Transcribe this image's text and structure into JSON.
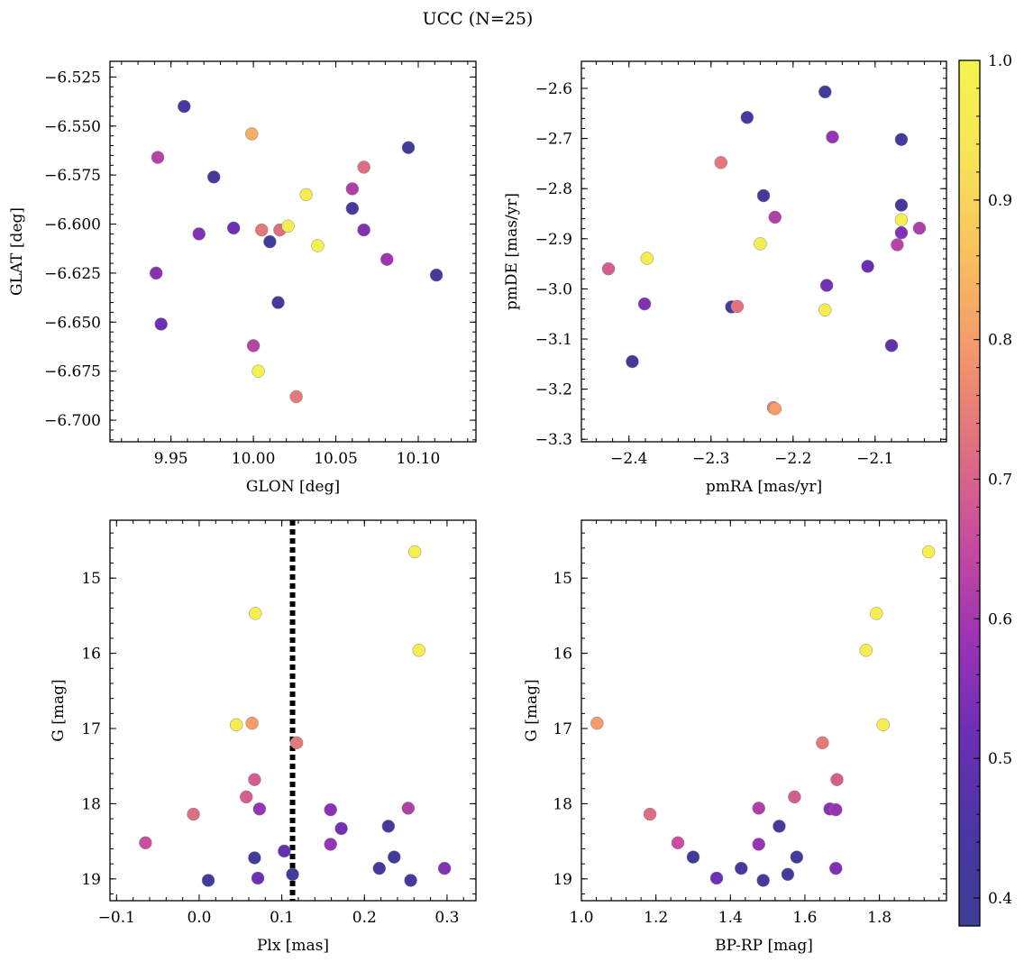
{
  "title": "UCC (N=25)",
  "chart_data": [
    {
      "type": "scatter",
      "xlabel": "GLON [deg]",
      "ylabel": "GLAT [deg]",
      "xlim": [
        9.913,
        10.135
      ],
      "ylim": [
        -6.711,
        -6.517
      ],
      "xticks": [
        9.95,
        10.0,
        10.05,
        10.1
      ],
      "xtick_labels": [
        "9.95",
        "10.00",
        "10.05",
        "10.10"
      ],
      "yticks": [
        -6.525,
        -6.55,
        -6.575,
        -6.6,
        -6.625,
        -6.65,
        -6.675,
        -6.7
      ],
      "ytick_labels": [
        "−6.525",
        "−6.550",
        "−6.575",
        "−6.600",
        "−6.625",
        "−6.650",
        "−6.675",
        "−6.700"
      ],
      "color_by": "membership probability",
      "points": [
        {
          "x": 9.958,
          "y": -6.54,
          "c": 0.44
        },
        {
          "x": 9.942,
          "y": -6.566,
          "c": 0.63
        },
        {
          "x": 9.976,
          "y": -6.576,
          "c": 0.42
        },
        {
          "x": 9.999,
          "y": -6.554,
          "c": 0.83
        },
        {
          "x": 9.941,
          "y": -6.625,
          "c": 0.56
        },
        {
          "x": 9.944,
          "y": -6.651,
          "c": 0.52
        },
        {
          "x": 9.967,
          "y": -6.605,
          "c": 0.55
        },
        {
          "x": 9.988,
          "y": -6.602,
          "c": 0.52
        },
        {
          "x": 10.005,
          "y": -6.603,
          "c": 0.74
        },
        {
          "x": 10.01,
          "y": -6.609,
          "c": 0.4
        },
        {
          "x": 10.016,
          "y": -6.603,
          "c": 0.72
        },
        {
          "x": 10.021,
          "y": -6.601,
          "c": 0.97
        },
        {
          "x": 10.032,
          "y": -6.585,
          "c": 0.96
        },
        {
          "x": 10.039,
          "y": -6.611,
          "c": 0.98
        },
        {
          "x": 10.015,
          "y": -6.64,
          "c": 0.43
        },
        {
          "x": 10.0,
          "y": -6.662,
          "c": 0.63
        },
        {
          "x": 10.003,
          "y": -6.675,
          "c": 0.99
        },
        {
          "x": 10.026,
          "y": -6.688,
          "c": 0.74
        },
        {
          "x": 10.06,
          "y": -6.582,
          "c": 0.62
        },
        {
          "x": 10.067,
          "y": -6.571,
          "c": 0.72
        },
        {
          "x": 10.06,
          "y": -6.592,
          "c": 0.44
        },
        {
          "x": 10.067,
          "y": -6.603,
          "c": 0.55
        },
        {
          "x": 10.081,
          "y": -6.618,
          "c": 0.59
        },
        {
          "x": 10.094,
          "y": -6.561,
          "c": 0.41
        },
        {
          "x": 10.111,
          "y": -6.626,
          "c": 0.42
        }
      ]
    },
    {
      "type": "scatter",
      "xlabel": "pmRA [mas/yr]",
      "ylabel": "pmDE [mas/yr]",
      "xlim": [
        -2.458,
        -2.013
      ],
      "ylim": [
        -3.305,
        -2.546
      ],
      "xticks": [
        -2.4,
        -2.3,
        -2.2,
        -2.1
      ],
      "xtick_labels": [
        "−2.4",
        "−2.3",
        "−2.2",
        "−2.1"
      ],
      "yticks": [
        -2.6,
        -2.7,
        -2.8,
        -2.9,
        -3.0,
        -3.1,
        -3.2,
        -3.3
      ],
      "ytick_labels": [
        "−2.6",
        "−2.7",
        "−2.8",
        "−2.9",
        "−3.0",
        "−3.1",
        "−3.2",
        "−3.3"
      ],
      "color_by": "membership probability",
      "points": [
        {
          "x": -2.161,
          "y": -2.607,
          "c": 0.41
        },
        {
          "x": -2.256,
          "y": -2.658,
          "c": 0.44
        },
        {
          "x": -2.152,
          "y": -2.697,
          "c": 0.58
        },
        {
          "x": -2.068,
          "y": -2.702,
          "c": 0.41
        },
        {
          "x": -2.288,
          "y": -2.748,
          "c": 0.74
        },
        {
          "x": -2.236,
          "y": -2.814,
          "c": 0.42
        },
        {
          "x": -2.068,
          "y": -2.833,
          "c": 0.42
        },
        {
          "x": -2.222,
          "y": -2.857,
          "c": 0.62
        },
        {
          "x": -2.068,
          "y": -2.862,
          "c": 0.98
        },
        {
          "x": -2.068,
          "y": -2.888,
          "c": 0.55
        },
        {
          "x": -2.046,
          "y": -2.879,
          "c": 0.62
        },
        {
          "x": -2.073,
          "y": -2.912,
          "c": 0.63
        },
        {
          "x": -2.24,
          "y": -2.91,
          "c": 0.97
        },
        {
          "x": -2.378,
          "y": -2.939,
          "c": 0.97
        },
        {
          "x": -2.425,
          "y": -2.96,
          "c": 0.69
        },
        {
          "x": -2.109,
          "y": -2.955,
          "c": 0.51
        },
        {
          "x": -2.159,
          "y": -2.993,
          "c": 0.53
        },
        {
          "x": -2.381,
          "y": -3.03,
          "c": 0.55
        },
        {
          "x": -2.275,
          "y": -3.036,
          "c": 0.41
        },
        {
          "x": -2.268,
          "y": -3.035,
          "c": 0.73
        },
        {
          "x": -2.161,
          "y": -3.042,
          "c": 0.97
        },
        {
          "x": -2.08,
          "y": -3.113,
          "c": 0.5
        },
        {
          "x": -2.396,
          "y": -3.145,
          "c": 0.41
        },
        {
          "x": -2.224,
          "y": -3.237,
          "c": 0.74
        },
        {
          "x": -2.222,
          "y": -3.239,
          "c": 0.8
        }
      ]
    },
    {
      "type": "scatter",
      "xlabel": "Plx [mas]",
      "ylabel": "G [mag]",
      "xlim": [
        -0.108,
        0.335
      ],
      "ylim": [
        19.29,
        14.23
      ],
      "xticks": [
        -0.1,
        0.0,
        0.1,
        0.2,
        0.3
      ],
      "xtick_labels": [
        "−0.1",
        "0.0",
        "0.1",
        "0.2",
        "0.3"
      ],
      "yticks": [
        15,
        16,
        17,
        18,
        19
      ],
      "ytick_labels": [
        "15",
        "16",
        "17",
        "18",
        "19"
      ],
      "vline": 0.113,
      "color_by": "membership probability",
      "points": [
        {
          "x": 0.261,
          "y": 14.65,
          "c": 0.98
        },
        {
          "x": 0.068,
          "y": 15.47,
          "c": 0.98
        },
        {
          "x": 0.266,
          "y": 15.96,
          "c": 0.97
        },
        {
          "x": 0.045,
          "y": 16.95,
          "c": 0.97
        },
        {
          "x": 0.064,
          "y": 16.93,
          "c": 0.8
        },
        {
          "x": 0.118,
          "y": 17.19,
          "c": 0.74
        },
        {
          "x": 0.067,
          "y": 17.68,
          "c": 0.69
        },
        {
          "x": 0.057,
          "y": 17.91,
          "c": 0.69
        },
        {
          "x": 0.073,
          "y": 18.07,
          "c": 0.58
        },
        {
          "x": -0.007,
          "y": 18.14,
          "c": 0.72
        },
        {
          "x": 0.159,
          "y": 18.08,
          "c": 0.56
        },
        {
          "x": 0.253,
          "y": 18.06,
          "c": 0.62
        },
        {
          "x": 0.172,
          "y": 18.33,
          "c": 0.53
        },
        {
          "x": 0.229,
          "y": 18.3,
          "c": 0.42
        },
        {
          "x": -0.065,
          "y": 18.52,
          "c": 0.66
        },
        {
          "x": 0.159,
          "y": 18.54,
          "c": 0.58
        },
        {
          "x": 0.103,
          "y": 18.63,
          "c": 0.51
        },
        {
          "x": 0.067,
          "y": 18.72,
          "c": 0.41
        },
        {
          "x": 0.236,
          "y": 18.71,
          "c": 0.41
        },
        {
          "x": 0.218,
          "y": 18.86,
          "c": 0.42
        },
        {
          "x": 0.297,
          "y": 18.86,
          "c": 0.55
        },
        {
          "x": 0.113,
          "y": 18.94,
          "c": 0.41
        },
        {
          "x": 0.071,
          "y": 18.99,
          "c": 0.52
        },
        {
          "x": 0.011,
          "y": 19.02,
          "c": 0.41
        },
        {
          "x": 0.256,
          "y": 19.02,
          "c": 0.42
        }
      ]
    },
    {
      "type": "scatter",
      "xlabel": "BP-RP [mag]",
      "ylabel": "G [mag]",
      "xlim": [
        1.0,
        1.98
      ],
      "ylim": [
        19.29,
        14.23
      ],
      "xticks": [
        1.0,
        1.2,
        1.4,
        1.6,
        1.8
      ],
      "xtick_labels": [
        "1.0",
        "1.2",
        "1.4",
        "1.6",
        "1.8"
      ],
      "yticks": [
        15,
        16,
        17,
        18,
        19
      ],
      "ytick_labels": [
        "15",
        "16",
        "17",
        "18",
        "19"
      ],
      "color_by": "membership probability",
      "points": [
        {
          "x": 1.932,
          "y": 14.65,
          "c": 0.98
        },
        {
          "x": 1.792,
          "y": 15.47,
          "c": 0.98
        },
        {
          "x": 1.764,
          "y": 15.96,
          "c": 0.97
        },
        {
          "x": 1.042,
          "y": 16.93,
          "c": 0.8
        },
        {
          "x": 1.81,
          "y": 16.95,
          "c": 0.97
        },
        {
          "x": 1.647,
          "y": 17.19,
          "c": 0.74
        },
        {
          "x": 1.686,
          "y": 17.68,
          "c": 0.69
        },
        {
          "x": 1.572,
          "y": 17.91,
          "c": 0.69
        },
        {
          "x": 1.476,
          "y": 18.06,
          "c": 0.62
        },
        {
          "x": 1.667,
          "y": 18.07,
          "c": 0.56
        },
        {
          "x": 1.683,
          "y": 18.08,
          "c": 0.58
        },
        {
          "x": 1.184,
          "y": 18.14,
          "c": 0.72
        },
        {
          "x": 1.531,
          "y": 18.3,
          "c": 0.42
        },
        {
          "x": 1.259,
          "y": 18.52,
          "c": 0.66
        },
        {
          "x": 1.476,
          "y": 18.54,
          "c": 0.58
        },
        {
          "x": 1.3,
          "y": 18.71,
          "c": 0.41
        },
        {
          "x": 1.578,
          "y": 18.71,
          "c": 0.41
        },
        {
          "x": 1.429,
          "y": 18.86,
          "c": 0.42
        },
        {
          "x": 1.683,
          "y": 18.86,
          "c": 0.55
        },
        {
          "x": 1.554,
          "y": 18.94,
          "c": 0.41
        },
        {
          "x": 1.363,
          "y": 18.99,
          "c": 0.52
        },
        {
          "x": 1.488,
          "y": 19.02,
          "c": 0.41
        }
      ]
    }
  ],
  "colorbar": {
    "colormap": "plasma",
    "range": [
      0.38,
      1.0
    ],
    "ticks": [
      0.4,
      0.5,
      0.6,
      0.7,
      0.8,
      0.9,
      1.0
    ],
    "tick_labels": [
      "0.4",
      "0.5",
      "0.6",
      "0.7",
      "0.8",
      "0.9",
      "1.0"
    ],
    "gradient_stops": [
      "#3d3e96",
      "#4a36a3",
      "#6b2fb5",
      "#9c33b5",
      "#c84c9e",
      "#e07080",
      "#f3996c",
      "#f9c15e",
      "#f8e456",
      "#f4f44e"
    ]
  }
}
